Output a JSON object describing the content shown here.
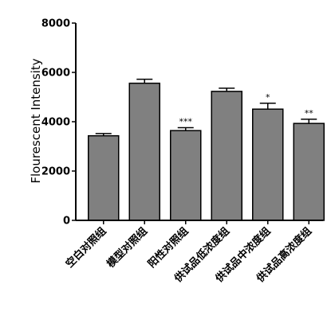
{
  "chart_data": {
    "type": "bar",
    "title": "",
    "xlabel": "",
    "ylabel": "Flourescent Intensity",
    "ylim": [
      0,
      8000
    ],
    "yticks": [
      0,
      2000,
      4000,
      6000,
      8000
    ],
    "ytick_labels": [
      "0",
      "2000",
      "4000",
      "6000",
      "8000"
    ],
    "grid": false,
    "legend": "none",
    "categories": [
      "空白对照组",
      "模型对照组",
      "阳性对照组",
      "供试品低浓度组",
      "供试品中浓度组",
      "供试品高浓度组"
    ],
    "values": [
      3430,
      5560,
      3640,
      5230,
      4510,
      3930
    ],
    "error": [
      90,
      160,
      120,
      130,
      240,
      170
    ],
    "annotations": [
      "",
      "",
      "***",
      "",
      "*",
      "**"
    ],
    "colors": {
      "bar_fill": "#808080",
      "bar_stroke": "#000000",
      "axis": "#000000"
    }
  }
}
